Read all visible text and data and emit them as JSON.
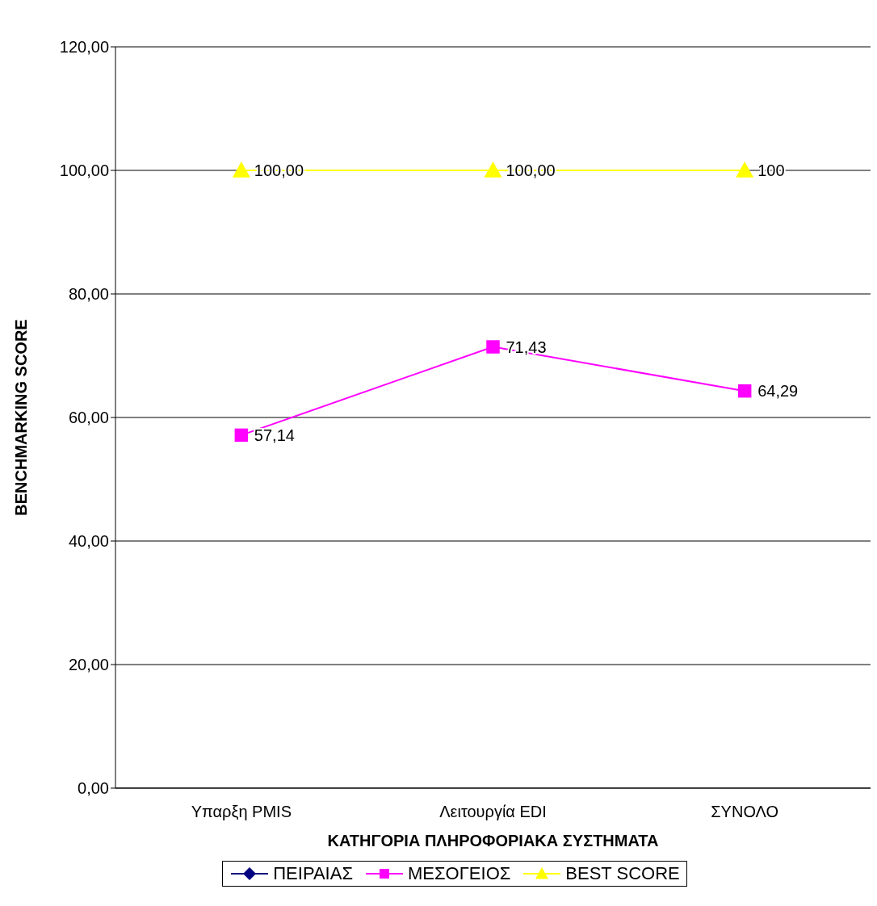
{
  "chart_data": {
    "type": "line",
    "xlabel": "ΚΑΤΗΓΟΡΙΑ ΠΛΗΡΟΦΟΡΙΑΚΑ ΣΥΣΤΗΜΑΤΑ",
    "ylabel": "BENCHMARKING SCORE",
    "categories": [
      "Υπαρξη PMIS",
      "Λειτουργία EDI",
      "ΣΥΝΟΛΟ"
    ],
    "series": [
      {
        "name": "ΠΕΙΡΑΙΑΣ",
        "color": "#000080",
        "marker": "diamond",
        "values": [
          null,
          null,
          null
        ]
      },
      {
        "name": "ΜΕΣΟΓΕΙΟΣ",
        "color": "#ff00ff",
        "marker": "square",
        "values": [
          57.14,
          71.43,
          64.29
        ],
        "value_labels": [
          "57,14",
          "71,43",
          "64,29"
        ]
      },
      {
        "name": "BEST SCORE",
        "color": "#ffff00",
        "marker": "triangle",
        "values": [
          100,
          100,
          100
        ],
        "value_labels": [
          "100,00",
          "100,00",
          "100"
        ]
      }
    ],
    "ylim": [
      0,
      120
    ],
    "yticks": [
      {
        "value": 0,
        "label": "0,00"
      },
      {
        "value": 20,
        "label": "20,00"
      },
      {
        "value": 40,
        "label": "40,00"
      },
      {
        "value": 60,
        "label": "60,00"
      },
      {
        "value": 80,
        "label": "80,00"
      },
      {
        "value": 100,
        "label": "100,00"
      },
      {
        "value": 120,
        "label": "120,00"
      }
    ],
    "grid": "y",
    "legend": "bottom"
  }
}
